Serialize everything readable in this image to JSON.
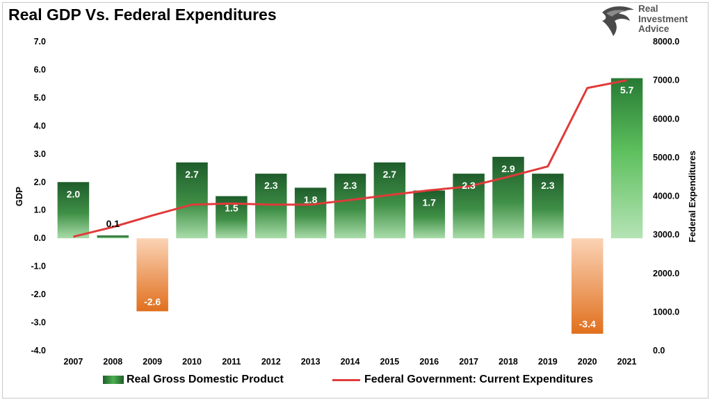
{
  "title": "Real GDP Vs. Federal Expenditures",
  "logo": {
    "lines": [
      "Real",
      "Investment",
      "Advice"
    ],
    "icon": "eagle-head-icon"
  },
  "colors": {
    "bar_positive_dark": "#1e5c2b",
    "bar_positive_light": "#a9dca9",
    "bar_negative_dark": "#e0701e",
    "bar_negative_light": "#fbd3b5",
    "line": "#e03a3a"
  },
  "chart_data": {
    "type": "bar",
    "categories": [
      "2007",
      "2008",
      "2009",
      "2010",
      "2011",
      "2012",
      "2013",
      "2014",
      "2015",
      "2016",
      "2017",
      "2018",
      "2019",
      "2020",
      "2021"
    ],
    "series": [
      {
        "name": "Real Gross Domestic Product",
        "type": "bar",
        "axis": "left",
        "values": [
          2.0,
          0.1,
          -2.6,
          2.7,
          1.5,
          2.3,
          1.8,
          2.3,
          2.7,
          1.7,
          2.3,
          2.9,
          2.3,
          -3.4,
          5.7
        ],
        "labels": [
          "2.0",
          "0.1",
          "-2.6",
          "2.7",
          "1.5",
          "2.3",
          "1.8",
          "2.3",
          "2.7",
          "1.7",
          "2.3",
          "2.9",
          "2.3",
          "-3.4",
          "5.7"
        ]
      },
      {
        "name": "Federal Government: Current Expenditures",
        "type": "line",
        "axis": "right",
        "values": [
          2950,
          3200,
          3500,
          3780,
          3810,
          3780,
          3780,
          3900,
          4030,
          4150,
          4250,
          4500,
          4770,
          6800,
          7000
        ]
      }
    ],
    "ylabel": "GDP",
    "y2label": "Federal Expenditures",
    "ylim": [
      -4.0,
      7.0
    ],
    "y2lim": [
      0,
      8000
    ],
    "yticks": [
      "7.0",
      "6.0",
      "5.0",
      "4.0",
      "3.0",
      "2.0",
      "1.0",
      "0.0",
      "-1.0",
      "-2.0",
      "-3.0",
      "-4.0"
    ],
    "y2ticks": [
      "8000.0",
      "7000.0",
      "6000.0",
      "5000.0",
      "4000.0",
      "3000.0",
      "2000.0",
      "1000.0",
      "0.0"
    ],
    "legend": "bottom",
    "grid": false
  }
}
